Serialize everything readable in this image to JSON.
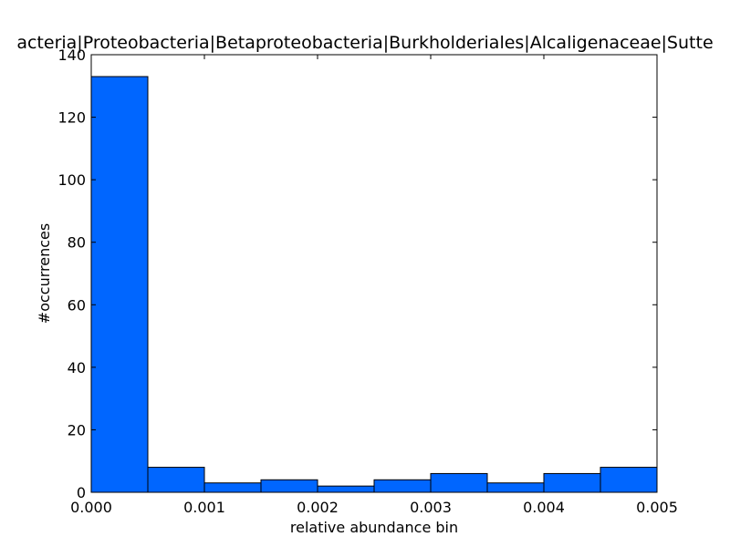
{
  "chart_data": {
    "type": "bar",
    "title": "acteria|Proteobacteria|Betaproteobacteria|Burkholderiales|Alcaligenaceae|Sutte",
    "xlabel": "relative abundance bin",
    "ylabel": "#occurrences",
    "xlim": [
      0,
      0.005
    ],
    "ylim": [
      0,
      140
    ],
    "bin_edges": [
      0,
      0.0005,
      0.001,
      0.0015,
      0.002,
      0.0025,
      0.003,
      0.0035,
      0.004,
      0.0045,
      0.005
    ],
    "values": [
      133,
      8,
      3,
      4,
      2,
      4,
      6,
      3,
      6,
      8
    ],
    "bar_color": "#0066ff",
    "x_ticks": [
      0,
      0.001,
      0.002,
      0.003,
      0.004,
      0.005
    ],
    "x_tick_labels": [
      "0.000",
      "0.001",
      "0.002",
      "0.003",
      "0.004",
      "0.005"
    ],
    "y_ticks": [
      0,
      20,
      40,
      60,
      80,
      100,
      120,
      140
    ],
    "y_tick_labels": [
      "0",
      "20",
      "40",
      "60",
      "80",
      "100",
      "120",
      "140"
    ],
    "grid": false
  }
}
